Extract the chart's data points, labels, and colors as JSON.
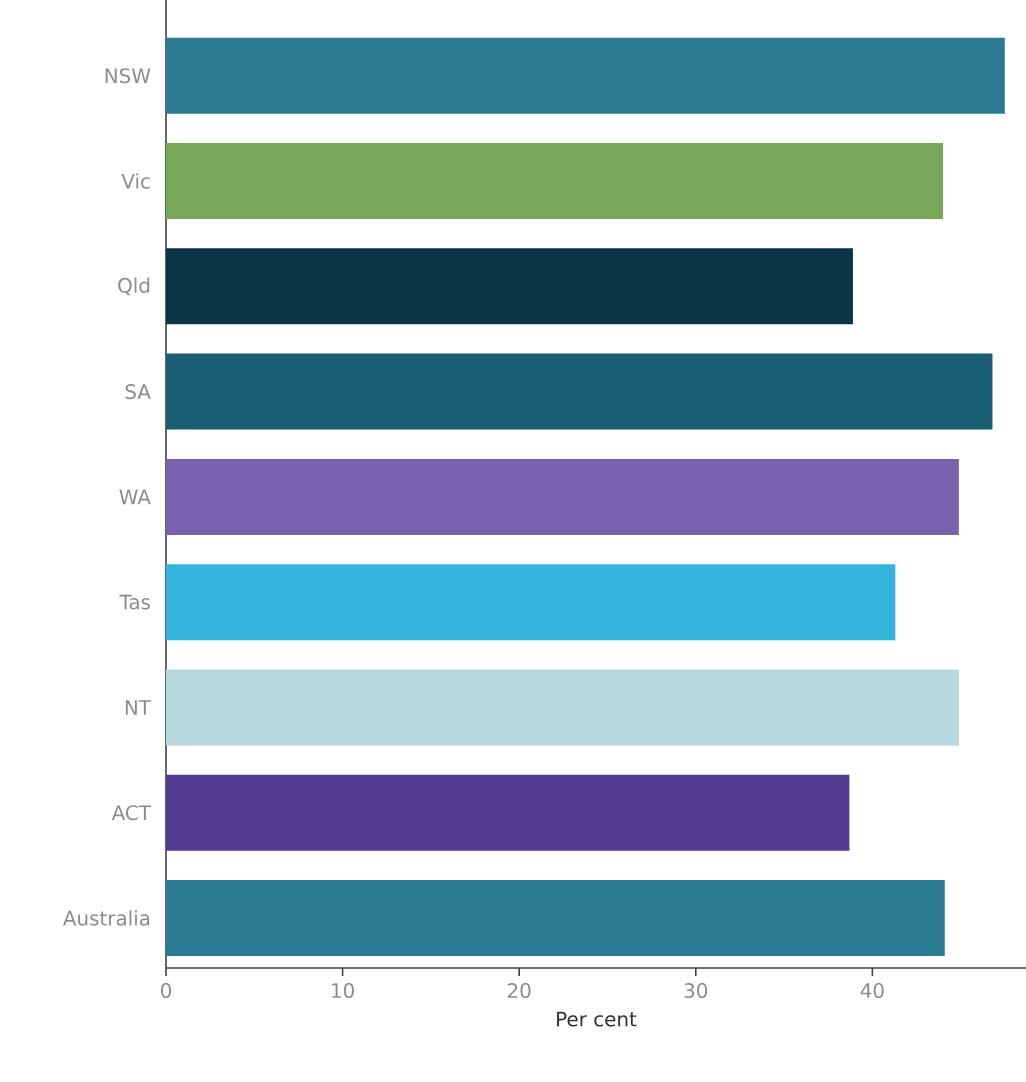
{
  "chart_data": {
    "type": "bar",
    "orientation": "horizontal",
    "xlabel": "Per cent",
    "categories": [
      "NSW",
      "Vic",
      "Qld",
      "SA",
      "WA",
      "Tas",
      "NT",
      "ACT",
      "Australia"
    ],
    "values": [
      47.5,
      44.0,
      38.9,
      46.8,
      44.9,
      41.3,
      44.9,
      38.7,
      44.1
    ],
    "colors": [
      "#2b7a94",
      "#78a75a",
      "#0c3447",
      "#1b5d72",
      "#7763ad",
      "#33b4dd",
      "#b8d8e0",
      "#513c92",
      "#2b7a94"
    ],
    "xlim": [
      0,
      48.7
    ],
    "xticks": [
      0,
      10,
      20,
      30,
      40
    ],
    "grid": false
  }
}
